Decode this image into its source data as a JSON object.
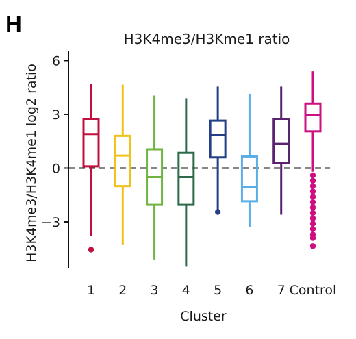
{
  "panel_label": "H",
  "chart_data": {
    "type": "box",
    "title": "H3K4me3/H3Kme1 ratio",
    "xlabel": "Cluster",
    "ylabel": "H3K4me3/H3K4me1 log2 ratio",
    "ylim": [
      -5.6,
      6.4
    ],
    "yticks": [
      6,
      3,
      0,
      -3
    ],
    "ytick_labels": [
      "6",
      "3",
      "0",
      "−3"
    ],
    "reference_line": {
      "y": 0,
      "style": "dashed"
    },
    "categories": [
      "1",
      "2",
      "3",
      "4",
      "5",
      "6",
      "7",
      "Control"
    ],
    "series": [
      {
        "category": "1",
        "color": "#c0113e",
        "whisker_low": -3.8,
        "q1": 0.1,
        "median": 1.9,
        "q3": 2.75,
        "whisker_high": 4.7,
        "outliers": [
          -4.55
        ]
      },
      {
        "category": "2",
        "color": "#f1c21b",
        "whisker_low": -4.3,
        "q1": -1.0,
        "median": 0.7,
        "q3": 1.8,
        "whisker_high": 4.65,
        "outliers": []
      },
      {
        "category": "3",
        "color": "#6fb440",
        "whisker_low": -5.1,
        "q1": -2.05,
        "median": -0.5,
        "q3": 1.05,
        "whisker_high": 4.05,
        "outliers": []
      },
      {
        "category": "4",
        "color": "#2c6a4a",
        "whisker_low": -5.5,
        "q1": -2.05,
        "median": -0.5,
        "q3": 0.85,
        "whisker_high": 3.9,
        "outliers": []
      },
      {
        "category": "5",
        "color": "#233f86",
        "whisker_low": -2.45,
        "q1": 0.6,
        "median": 1.85,
        "q3": 2.65,
        "whisker_high": 4.55,
        "outliers": [
          -2.45
        ]
      },
      {
        "category": "6",
        "color": "#5aaee6",
        "whisker_low": -3.3,
        "q1": -1.85,
        "median": -1.05,
        "q3": 0.65,
        "whisker_high": 4.15,
        "outliers": []
      },
      {
        "category": "7",
        "color": "#5a2370",
        "whisker_low": -2.6,
        "q1": 0.3,
        "median": 1.35,
        "q3": 2.75,
        "whisker_high": 4.55,
        "outliers": []
      },
      {
        "category": "Control",
        "color": "#cc1080",
        "whisker_low": -0.2,
        "q1": 2.05,
        "median": 2.95,
        "q3": 3.6,
        "whisker_high": 5.4,
        "outliers": [
          -0.4,
          -0.7,
          -1.0,
          -1.3,
          -1.6,
          -1.9,
          -2.2,
          -2.5,
          -2.8,
          -3.1,
          -3.4,
          -3.7,
          -3.9,
          -4.35
        ]
      }
    ]
  }
}
